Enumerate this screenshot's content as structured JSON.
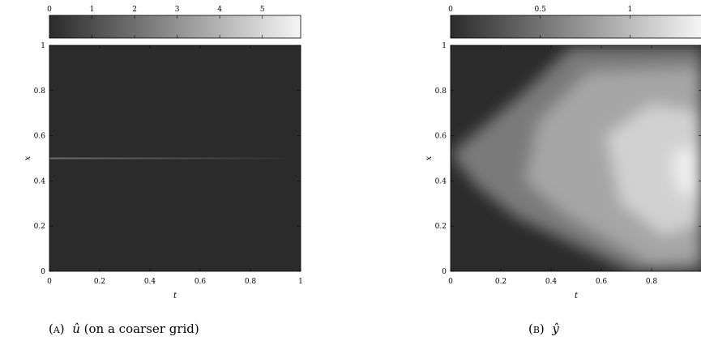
{
  "chart_data": [
    {
      "type": "heatmap",
      "panel": "a",
      "xlabel": "t",
      "ylabel": "x",
      "xlim": [
        0,
        1
      ],
      "ylim": [
        0,
        1
      ],
      "x_ticks": [
        "0",
        "0.2",
        "0.4",
        "0.6",
        "0.8",
        "1"
      ],
      "y_ticks": [
        "0",
        "0.2",
        "0.4",
        "0.6",
        "0.8",
        "1"
      ],
      "colorbar": {
        "range": [
          0,
          5.9
        ],
        "ticks": [
          "0",
          "1",
          "2",
          "3",
          "4",
          "5"
        ],
        "tick_values": [
          0,
          1,
          2,
          3,
          4,
          5
        ]
      },
      "colormap": [
        "#2b2b2b",
        "#f5f5f5"
      ],
      "features": [
        {
          "kind": "thin_horizontal_line",
          "x_start": 0,
          "x_end": 0.93,
          "y": 0.5,
          "value_start": 1.9,
          "value_end": 0.2
        }
      ],
      "background_value": 0,
      "caption": {
        "label": "(a)",
        "symbol": "û",
        "text": " (on a coarser grid)"
      }
    },
    {
      "type": "heatmap",
      "panel": "b",
      "xlabel": "t",
      "ylabel": "x",
      "xlim": [
        0,
        1
      ],
      "ylim": [
        0,
        1
      ],
      "x_ticks": [
        "0",
        "0.2",
        "0.4",
        "0.6",
        "0.8"
      ],
      "y_ticks": [
        "0",
        "0.2",
        "0.4",
        "0.6",
        "0.8",
        "1"
      ],
      "colorbar": {
        "range": [
          0,
          1.4
        ],
        "ticks": [
          "0",
          "0.5",
          "1"
        ],
        "tick_values": [
          0,
          0.5,
          1
        ]
      },
      "colormap": [
        "#2b2b2b",
        "#f5f5f5"
      ],
      "regions": [
        {
          "value": 0.55,
          "points": [
            [
              0,
              0.52
            ],
            [
              0.28,
              0.78
            ],
            [
              0.48,
              0.99
            ],
            [
              1,
              0.99
            ],
            [
              1,
              0
            ],
            [
              0.72,
              0
            ],
            [
              0.26,
              0.24
            ],
            [
              0.1,
              0.38
            ]
          ]
        },
        {
          "value": 0.85,
          "points": [
            [
              0.35,
              0.66
            ],
            [
              0.55,
              0.88
            ],
            [
              1,
              0.9
            ],
            [
              1,
              0.05
            ],
            [
              0.8,
              0.03
            ],
            [
              0.45,
              0.26
            ],
            [
              0.3,
              0.4
            ]
          ]
        },
        {
          "value": 1.15,
          "points": [
            [
              0.62,
              0.6
            ],
            [
              0.8,
              0.74
            ],
            [
              1,
              0.7
            ],
            [
              1,
              0.22
            ],
            [
              0.85,
              0.16
            ],
            [
              0.68,
              0.3
            ]
          ]
        },
        {
          "value": 1.35,
          "points": [
            [
              0.88,
              0.52
            ],
            [
              1,
              0.56
            ],
            [
              1,
              0.32
            ],
            [
              0.9,
              0.36
            ]
          ]
        }
      ],
      "background_value": 0,
      "caption": {
        "label": "(b)",
        "symbol": "ŷ",
        "text": ""
      }
    }
  ]
}
